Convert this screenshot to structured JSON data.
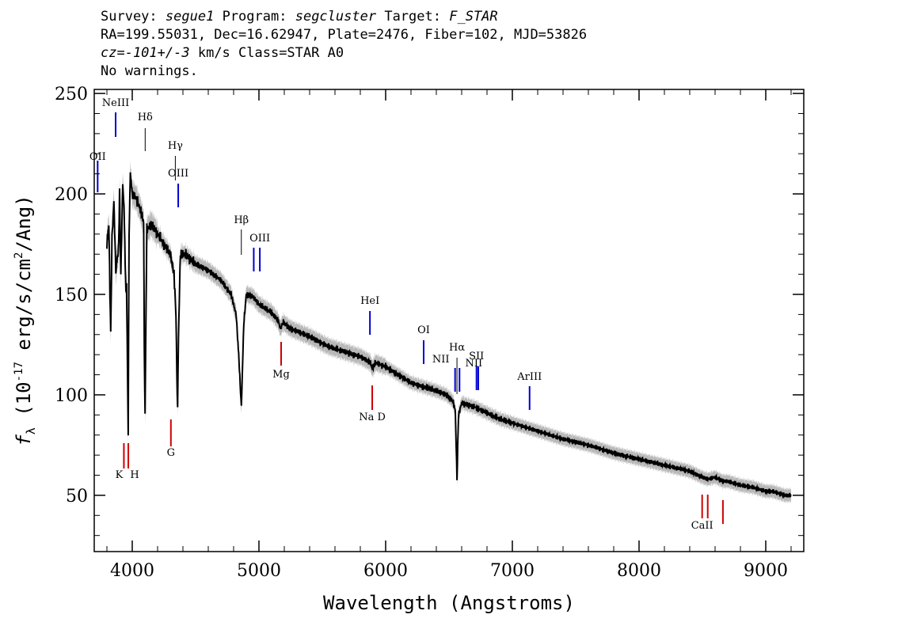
{
  "header": {
    "survey_label": "Survey:",
    "survey": "segue1",
    "program_label": "Program:",
    "program": "segcluster",
    "target_label": "Target:",
    "target": "F_STAR",
    "line2": "RA=199.55031, Dec=16.62947, Plate=2476, Fiber=102, MJD=53826",
    "cz": "cz=-101+/-3",
    "line3_rest": "km/s Class=STAR A0",
    "line4": "No warnings."
  },
  "chart_data": {
    "type": "line",
    "xlabel": "Wavelength (Angstroms)",
    "ylabel": "f_λ (10^-17 erg/s/cm^2/Ang)",
    "xlim": [
      3700,
      9300
    ],
    "ylim": [
      22,
      252
    ],
    "xticks": [
      4000,
      5000,
      6000,
      7000,
      8000,
      9000
    ],
    "yticks": [
      50,
      100,
      150,
      200,
      250
    ],
    "spectrum": {
      "x": [
        3800,
        3815,
        3830,
        3840,
        3855,
        3870,
        3885,
        3890,
        3900,
        3910,
        3925,
        3935,
        3950,
        3955,
        3960,
        3968,
        3975,
        3985,
        4000,
        4030,
        4060,
        4090,
        4095,
        4101,
        4107,
        4115,
        4150,
        4200,
        4250,
        4300,
        4330,
        4345,
        4352,
        4358,
        4365,
        4380,
        4420,
        4500,
        4600,
        4700,
        4780,
        4820,
        4840,
        4861,
        4880,
        4900,
        4950,
        5000,
        5100,
        5150,
        5170,
        5190,
        5250,
        5400,
        5550,
        5700,
        5800,
        5880,
        5895,
        5920,
        6000,
        6100,
        6200,
        6300,
        6400,
        6480,
        6530,
        6550,
        6563,
        6575,
        6600,
        6700,
        6800,
        6900,
        7000,
        7200,
        7400,
        7600,
        7800,
        8000,
        8200,
        8400,
        8498,
        8542,
        8600,
        8662,
        8700,
        8800,
        8900,
        9000,
        9050,
        9100,
        9150,
        9200
      ],
      "y": [
        175,
        185,
        130,
        178,
        196,
        162,
        170,
        168,
        200,
        160,
        205,
        193,
        150,
        155,
        128,
        80,
        180,
        210,
        200,
        198,
        193,
        186,
        125,
        88,
        130,
        182,
        185,
        180,
        175,
        170,
        160,
        140,
        110,
        93,
        130,
        170,
        170,
        165,
        162,
        157,
        150,
        140,
        120,
        94,
        135,
        150,
        149,
        145,
        141,
        137,
        133,
        136,
        133,
        129,
        124,
        121,
        119,
        116,
        113,
        116,
        114,
        110,
        106,
        104,
        102,
        100,
        97,
        92,
        58,
        90,
        96,
        94,
        91,
        88,
        86,
        82,
        78,
        75,
        71,
        68,
        65,
        62,
        59,
        58,
        59,
        57,
        57,
        55,
        54,
        52,
        52,
        51,
        50,
        50
      ]
    },
    "lines": [
      {
        "label": "OII",
        "x": 3727,
        "color": "blue"
      },
      {
        "label": "NeIII",
        "x": 3869,
        "color": "blue"
      },
      {
        "label": "Hδ",
        "x": 4102,
        "color": "black"
      },
      {
        "label": "Hγ",
        "x": 4340,
        "color": "black"
      },
      {
        "label": "OIII",
        "x": 4363,
        "color": "blue"
      },
      {
        "label": "Hβ",
        "x": 4861,
        "color": "black"
      },
      {
        "label": "OIII",
        "x": 4959,
        "color": "blue",
        "nolabel": true
      },
      {
        "label": "OIII",
        "x": 5007,
        "color": "blue"
      },
      {
        "label": "HeI",
        "x": 5876,
        "color": "blue"
      },
      {
        "label": "OI",
        "x": 6300,
        "color": "blue"
      },
      {
        "label": "NII",
        "x": 6548,
        "color": "blue"
      },
      {
        "label": "Hα",
        "x": 6563,
        "color": "black"
      },
      {
        "label": "NII",
        "x": 6583,
        "color": "blue"
      },
      {
        "label": "SII",
        "x": 6717,
        "color": "blue"
      },
      {
        "label": "SII",
        "x": 6731,
        "color": "blue",
        "nolabel": true
      },
      {
        "label": "ArIII",
        "x": 7136,
        "color": "blue"
      },
      {
        "label": "K",
        "x": 3934,
        "color": "red"
      },
      {
        "label": "H",
        "x": 3969,
        "color": "red"
      },
      {
        "label": "G",
        "x": 4305,
        "color": "red"
      },
      {
        "label": "Mg",
        "x": 5175,
        "color": "red"
      },
      {
        "label": "Na D",
        "x": 5894,
        "color": "red"
      },
      {
        "label": "CaII",
        "x": 8498,
        "color": "red"
      },
      {
        "label": "CaII",
        "x": 8542,
        "color": "red",
        "nolabel": true
      },
      {
        "label": "CaII",
        "x": 8662,
        "color": "red",
        "nolabel": true
      }
    ],
    "colors": {
      "spectrum": "#000000",
      "error_band": "#b8b8b8",
      "blue": "#0000d0",
      "red": "#d00000",
      "black": "#000000"
    }
  }
}
